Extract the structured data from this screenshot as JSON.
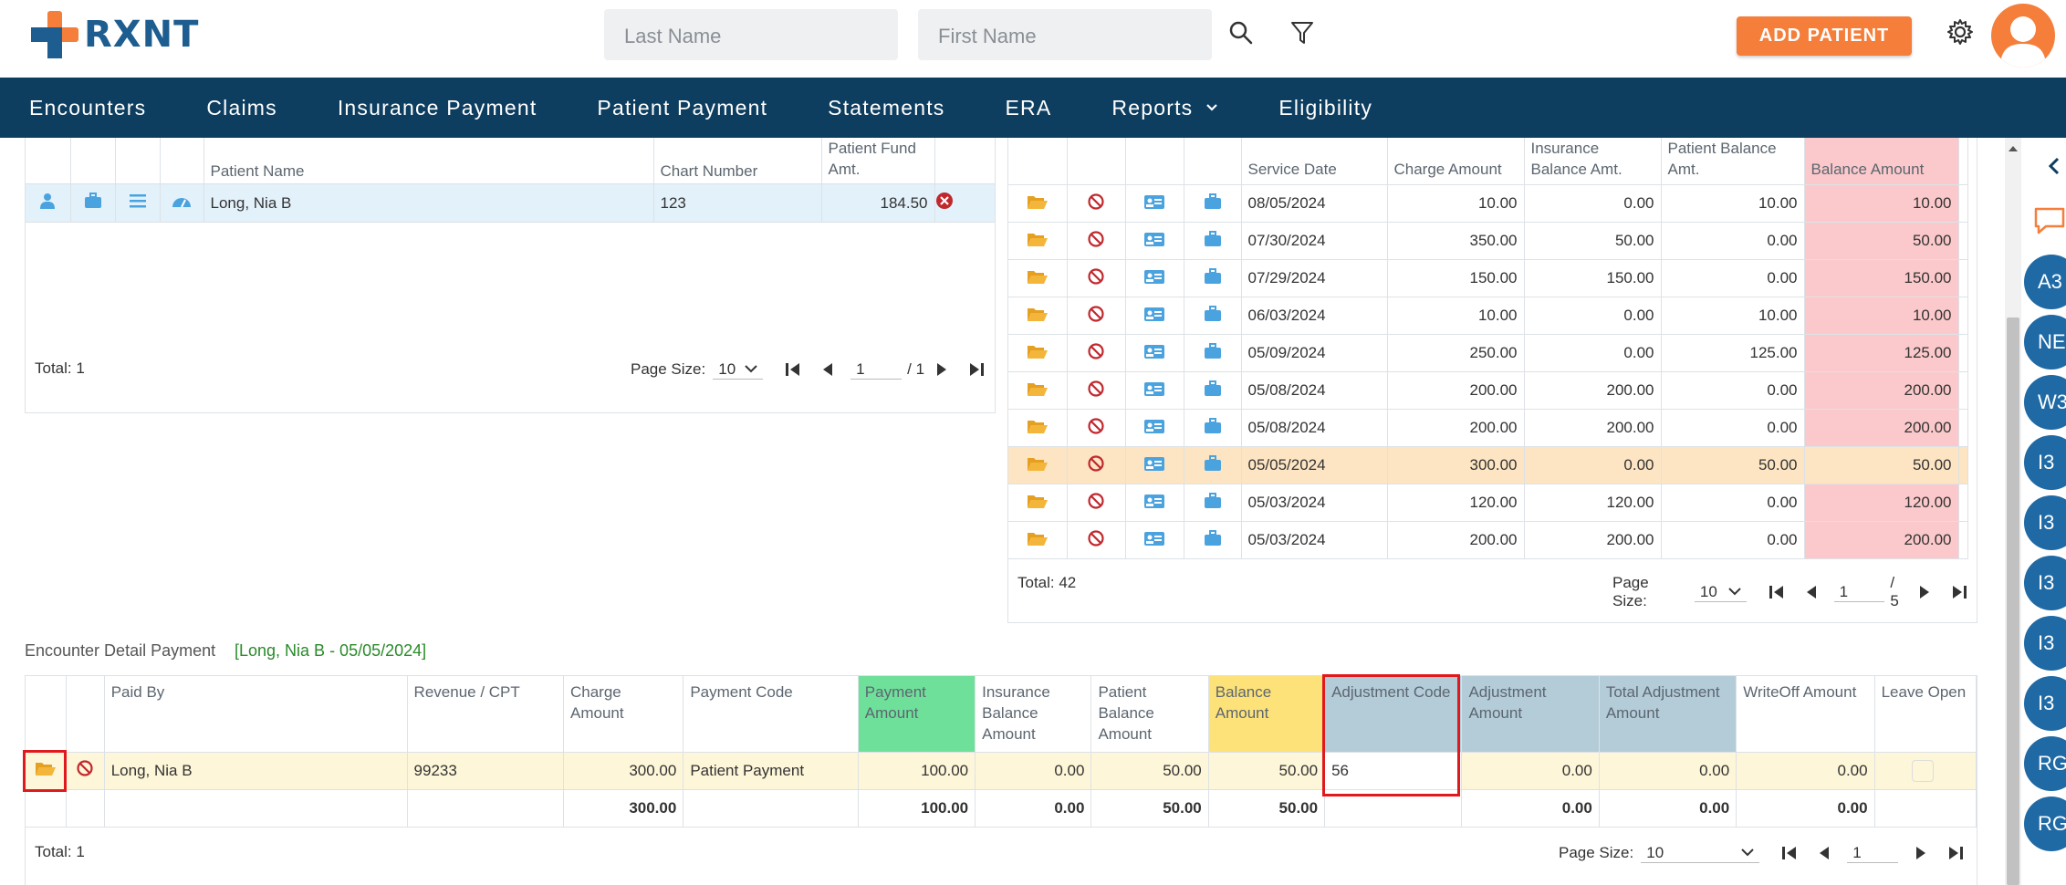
{
  "header": {
    "brand": "RXNT",
    "last_name_placeholder": "Last Name",
    "first_name_placeholder": "First Name",
    "add_patient_label": "ADD PATIENT"
  },
  "nav": {
    "items": [
      "Encounters",
      "Claims",
      "Insurance Payment",
      "Patient Payment",
      "Statements",
      "ERA",
      "Reports",
      "Eligibility"
    ]
  },
  "patient_grid": {
    "columns": [
      "Patient Name",
      "Chart Number",
      "Patient Fund Amt."
    ],
    "rows": [
      {
        "name": "Long, Nia B",
        "chart": "123",
        "fund": "184.50"
      }
    ],
    "total": "Total: 1",
    "page_size_label": "Page Size:",
    "page_size": "10",
    "page": "1",
    "page_of": "/ 1"
  },
  "encounter_grid": {
    "columns": [
      "Service Date",
      "Charge Amount",
      "Insurance Balance Amt.",
      "Patient Balance Amt.",
      "Balance Amount"
    ],
    "rows": [
      {
        "date": "08/05/2024",
        "charge": "10.00",
        "ins": "0.00",
        "pat": "10.00",
        "bal": "10.00"
      },
      {
        "date": "07/30/2024",
        "charge": "350.00",
        "ins": "50.00",
        "pat": "0.00",
        "bal": "50.00"
      },
      {
        "date": "07/29/2024",
        "charge": "150.00",
        "ins": "150.00",
        "pat": "0.00",
        "bal": "150.00"
      },
      {
        "date": "06/03/2024",
        "charge": "10.00",
        "ins": "0.00",
        "pat": "10.00",
        "bal": "10.00"
      },
      {
        "date": "05/09/2024",
        "charge": "250.00",
        "ins": "0.00",
        "pat": "125.00",
        "bal": "125.00"
      },
      {
        "date": "05/08/2024",
        "charge": "200.00",
        "ins": "200.00",
        "pat": "0.00",
        "bal": "200.00"
      },
      {
        "date": "05/08/2024",
        "charge": "200.00",
        "ins": "200.00",
        "pat": "0.00",
        "bal": "200.00"
      },
      {
        "date": "05/05/2024",
        "charge": "300.00",
        "ins": "0.00",
        "pat": "50.00",
        "bal": "50.00"
      },
      {
        "date": "05/03/2024",
        "charge": "120.00",
        "ins": "120.00",
        "pat": "0.00",
        "bal": "120.00"
      },
      {
        "date": "05/03/2024",
        "charge": "200.00",
        "ins": "200.00",
        "pat": "0.00",
        "bal": "200.00"
      }
    ],
    "total": "Total: 42",
    "page_size_label": "Page Size:",
    "page_size": "10",
    "page": "1",
    "page_of": "/ 5"
  },
  "detail": {
    "title": "Encounter Detail Payment",
    "context": "[Long, Nia B - 05/05/2024]",
    "columns": [
      "Paid By",
      "Revenue / CPT",
      "Charge Amount",
      "Payment Code",
      "Payment Amount",
      "Insurance Balance Amount",
      "Patient Balance Amount",
      "Balance Amount",
      "Adjustment Code",
      "Adjustment Amount",
      "Total Adjustment Amount",
      "WriteOff Amount",
      "Leave Open"
    ],
    "row": {
      "paid_by": "Long, Nia B",
      "cpt": "99233",
      "charge": "300.00",
      "payment_code": "Patient Payment",
      "payment": "100.00",
      "ins_bal": "0.00",
      "pat_bal": "50.00",
      "balance": "50.00",
      "adj_code": "56",
      "adj_amount": "0.00",
      "total_adj": "0.00",
      "writeoff": "0.00"
    },
    "totals": {
      "charge": "300.00",
      "payment": "100.00",
      "ins_bal": "0.00",
      "pat_bal": "50.00",
      "balance": "50.00",
      "adj_amount": "0.00",
      "total_adj": "0.00",
      "writeoff": "0.00"
    },
    "total": "Total: 1",
    "page_size_label": "Page Size:",
    "page_size": "10",
    "page": "1"
  },
  "rail": {
    "badges": [
      "A3",
      "NE",
      "W3",
      "I3",
      "I3",
      "I3",
      "I3",
      "I3",
      "RG",
      "RG"
    ]
  },
  "colors": {
    "brand_blue": "#1d5d8f",
    "brand_orange": "#f47e3a",
    "nav_bg": "#0d3d5f",
    "balance_pink": "#fbc9cb",
    "selected_row": "#fde5c3",
    "payment_green": "#6fe09a",
    "balance_yellow": "#fde27a",
    "adjust_blue": "#b3ccd8",
    "highlight_red": "#e0191f"
  }
}
